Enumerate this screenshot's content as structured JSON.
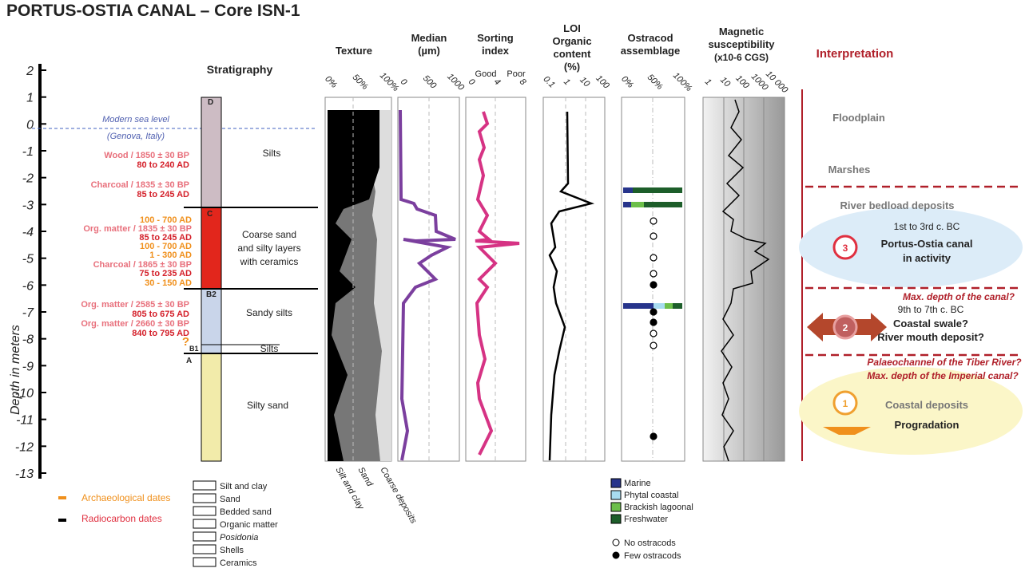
{
  "title": "PORTUS-OSTIA CANAL – Core ISN-1",
  "depth_axis": {
    "label": "Depth in meters",
    "ticks": [
      2,
      1,
      0,
      -1,
      -2,
      -3,
      -4,
      -5,
      -6,
      -7,
      -8,
      -9,
      -10,
      -11,
      -12,
      -13
    ]
  },
  "stratigraphy": {
    "title": "Stratigraphy",
    "sea_level": [
      "Modern sea level",
      "(Genova, Italy)"
    ],
    "codes": [
      "D",
      "C",
      "B2",
      "B1",
      "A"
    ],
    "units": [
      "Silts",
      "Coarse sand",
      "and silty layers",
      "with ceramics",
      "Sandy silts",
      "Silts",
      "Silty sand"
    ],
    "dates": [
      "Wood / 1850 ± 30 BP",
      "80 to 240 AD",
      "Charcoal / 1835 ± 30 BP",
      "85 to 245 AD",
      "100 - 700 AD",
      "Org. matter / 1835 ± 30 BP",
      "85 to 245 AD",
      "100 - 700 AD",
      "1 - 300 AD",
      "Charcoal / 1865 ± 30 BP",
      "75 to 235 AD",
      "30 - 150 AD",
      "Org. matter / 2585 ± 30 BP",
      "805 to 675 AD",
      "Org. matter / 2660 ± 30 BP",
      "840 to 795 AD",
      "?"
    ]
  },
  "panels": {
    "texture": {
      "title": [
        "Texture"
      ],
      "ticks": [
        "0%",
        "50%",
        "100%"
      ],
      "bottom": [
        "Silt and clay",
        "Sand",
        "Coarse deposits"
      ]
    },
    "median": {
      "title": [
        "Median",
        "(µm)"
      ],
      "ticks": [
        "0",
        "500",
        "1000"
      ]
    },
    "sorting": {
      "title": [
        "Sorting",
        "index"
      ],
      "ticks": [
        "0",
        "4",
        "8"
      ],
      "ends": [
        "Good",
        "Poor"
      ]
    },
    "loi": {
      "title": [
        "LOI",
        "Organic",
        "content",
        "(%)"
      ],
      "ticks": [
        "0.1",
        "1",
        "10",
        "100"
      ]
    },
    "ostracod": {
      "title": [
        "Ostracod",
        "assemblage"
      ],
      "ticks": [
        "0%",
        "50%",
        "100%"
      ]
    },
    "magnetic": {
      "title": [
        "Magnetic",
        "susceptibility",
        "(x10-6 CGS)"
      ],
      "ticks": [
        "1",
        "10",
        "100",
        "1000",
        "10 000"
      ]
    }
  },
  "interpretation": {
    "title": "Interpretation",
    "items": [
      "Floodplain",
      "Marshes",
      "River bedload deposits",
      "1st to 3rd c. BC",
      "Portus-Ostia canal",
      "in activity",
      "Max. depth of the canal?",
      "9th to 7th c. BC",
      "Coastal swale?",
      "River mouth deposit?",
      "Palaeochannel of the Tiber River?",
      "Max. depth of the Imperial canal?",
      "Coastal deposits",
      "Progradation"
    ],
    "numbers": [
      "3",
      "2",
      "1"
    ]
  },
  "legend": {
    "dates": [
      "Archaeological dates",
      "Radiocarbon dates"
    ],
    "lithology": [
      "Silt and clay",
      "Sand",
      "Bedded sand",
      "Organic matter",
      "Posidonia",
      "Shells",
      "Ceramics"
    ],
    "ostracods": [
      "Marine",
      "Phytal coastal",
      "Brackish lagoonal",
      "Freshwater",
      "No ostracods",
      "Few ostracods"
    ]
  }
}
